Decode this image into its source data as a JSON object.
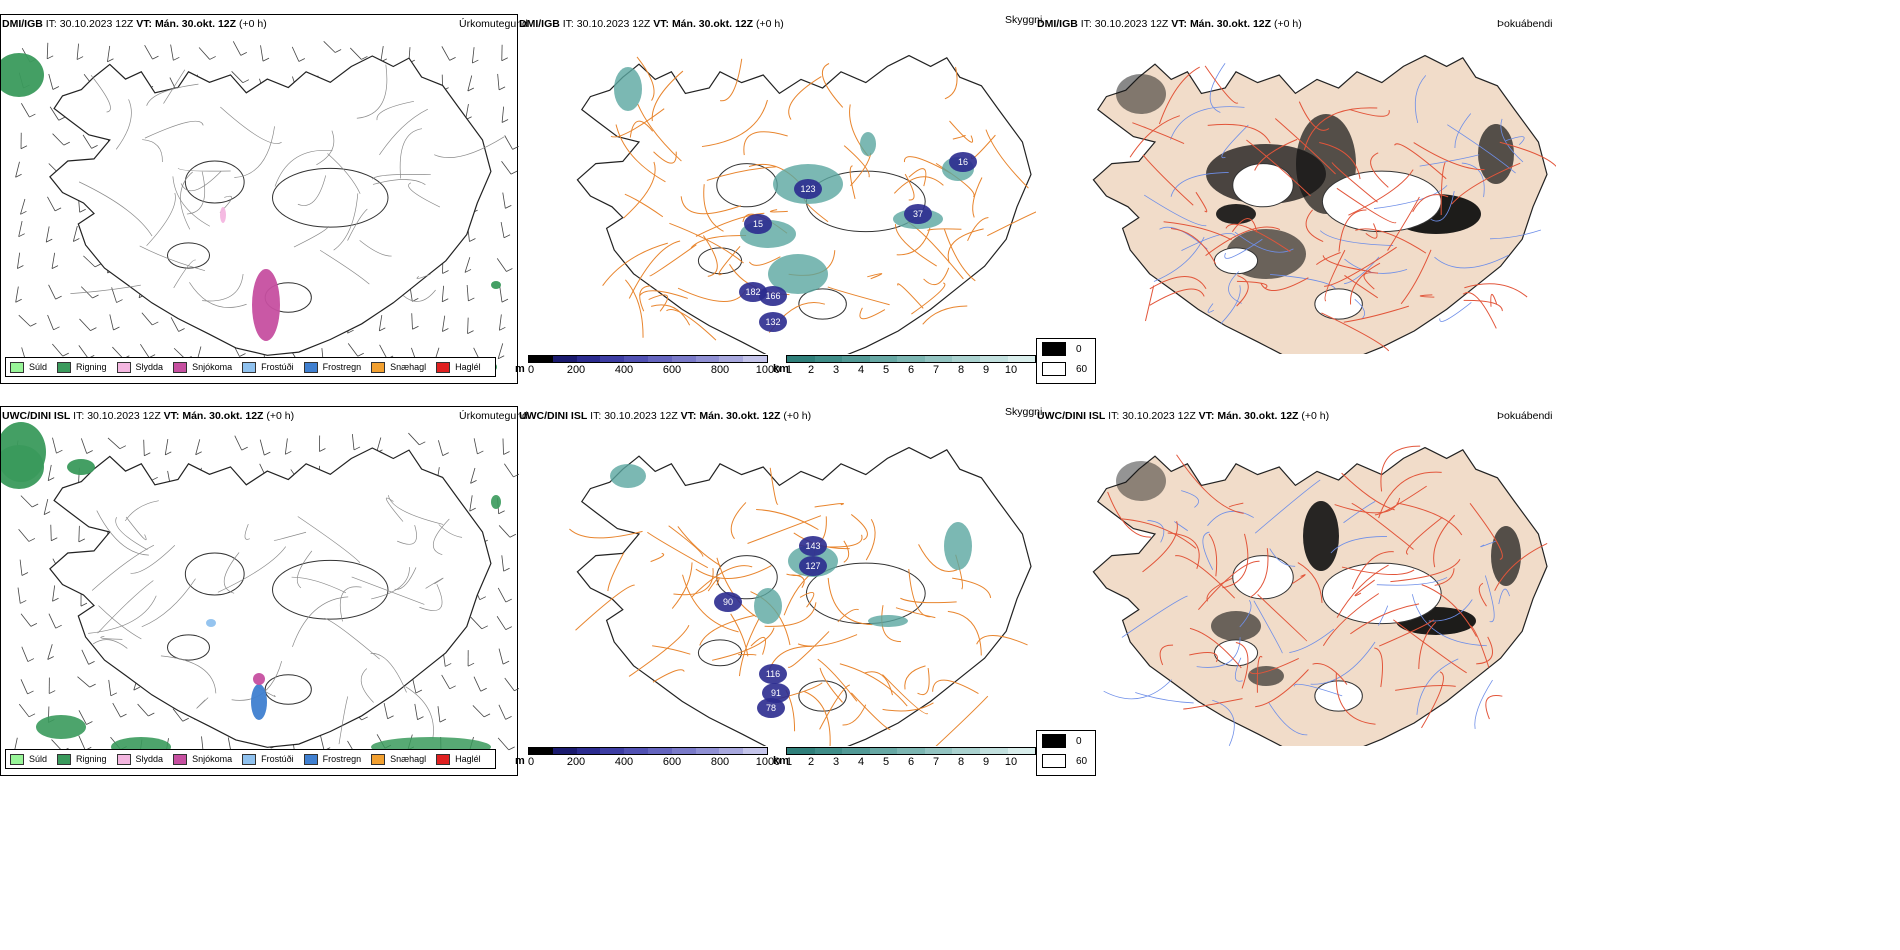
{
  "rows": [
    {
      "model": "DMI/IGB",
      "it_label": "IT:",
      "it_value": "30.10.2023 12Z",
      "vt_label": "VT:",
      "vt_value": "Mán. 30.okt. 12Z",
      "offset": "(+0 h)"
    },
    {
      "model": "UWC/DINI ISL",
      "it_label": "IT:",
      "it_value": "30.10.2023 12Z",
      "vt_label": "VT:",
      "vt_value": "Mán. 30.okt. 12Z",
      "offset": "(+0 h)"
    }
  ],
  "panels": {
    "precip_type": "Úrkomutegund",
    "visibility": "Skyggni",
    "fog": "Þokuábendi"
  },
  "precip_legend": [
    {
      "label": "Súld",
      "color": "#98f598"
    },
    {
      "label": "Rigning",
      "color": "#3a9a5c"
    },
    {
      "label": "Slydda",
      "color": "#f4b6e0"
    },
    {
      "label": "Snjókoma",
      "color": "#c64fa0"
    },
    {
      "label": "Frostúði",
      "color": "#8fc1ee"
    },
    {
      "label": "Frostregn",
      "color": "#3f7fd0"
    },
    {
      "label": "Snæhagl",
      "color": "#f2a030"
    },
    {
      "label": "Haglél",
      "color": "#e02020"
    }
  ],
  "visibility_scale_m": {
    "unit": "m",
    "ticks": [
      "0",
      "200",
      "400",
      "600",
      "800",
      "1000"
    ],
    "colors": [
      "#000000",
      "#1a1a6e",
      "#2b2b8f",
      "#3d3da3",
      "#5151b3",
      "#6565bf",
      "#7a7ac9",
      "#9090d4",
      "#a8a8de",
      "#c4c4ea"
    ]
  },
  "visibility_scale_km": {
    "unit": "km",
    "ticks": [
      "1",
      "2",
      "3",
      "4",
      "5",
      "6",
      "7",
      "8",
      "9",
      "10"
    ],
    "colors": [
      "#2f7f7a",
      "#3f8d88",
      "#529a96",
      "#67a8a4",
      "#7cb6b2",
      "#93c4c1",
      "#aad2cf",
      "#c2e0de",
      "#d9eeec"
    ]
  },
  "fog_legend": [
    {
      "label": "0",
      "color": "#000000"
    },
    {
      "label": "60",
      "color": "#ffffff"
    }
  ],
  "visibility_labels": {
    "top": [
      "123",
      "166",
      "132",
      "182",
      "37",
      "16",
      "15"
    ],
    "bottom": [
      "90",
      "127",
      "116",
      "91",
      "78",
      "143"
    ]
  },
  "colors": {
    "rain": "#3a9a5c",
    "snow": "#c64fa0",
    "roads": "#e8852e",
    "vis_dark": "#2b2b8f",
    "vis_teal": "#5aa6a0",
    "land_fog": "#f1dcc9",
    "roads_fog": "#e2553a",
    "rivers": "#6e8ee8"
  }
}
